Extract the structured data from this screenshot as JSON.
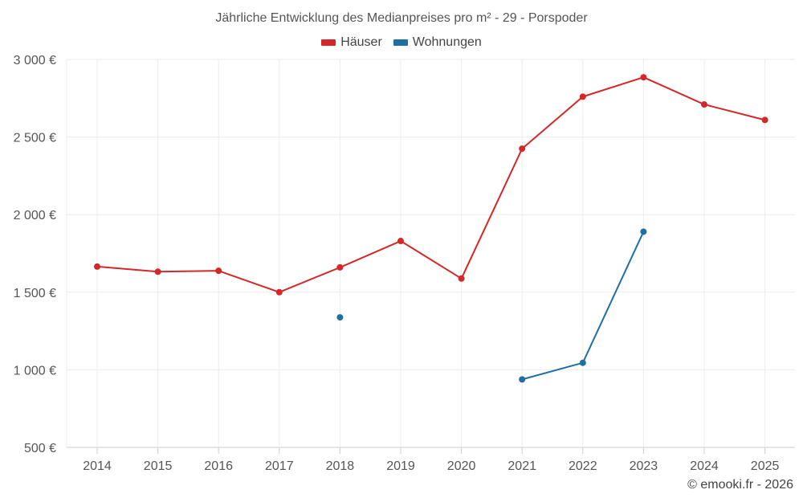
{
  "chart_data": {
    "type": "line",
    "title": "Jährliche Entwicklung des Medianpreises pro m² - 29 - Porspoder",
    "categories": [
      "2014",
      "2015",
      "2016",
      "2017",
      "2018",
      "2019",
      "2020",
      "2021",
      "2022",
      "2023",
      "2024",
      "2025"
    ],
    "series": [
      {
        "name": "Häuser",
        "color": "#d62728",
        "values": [
          1665,
          1632,
          1638,
          1500,
          1660,
          1830,
          1588,
          2425,
          2760,
          2885,
          2710,
          2610
        ]
      },
      {
        "name": "Wohnungen",
        "color": "#1f6fa3",
        "values": [
          null,
          null,
          null,
          null,
          1338,
          null,
          null,
          938,
          1045,
          1890,
          null,
          null
        ]
      }
    ],
    "yticks": [
      500,
      1000,
      1500,
      2000,
      2500,
      3000
    ],
    "ytick_labels": [
      "500 €",
      "1 000 €",
      "1 500 €",
      "2 000 €",
      "2 500 €",
      "3 000 €"
    ],
    "ylim": [
      500,
      3000
    ],
    "xlabel": "",
    "ylabel": "",
    "grid": true,
    "legend_position": "top-center"
  },
  "credit": "© emooki.fr - 2026"
}
